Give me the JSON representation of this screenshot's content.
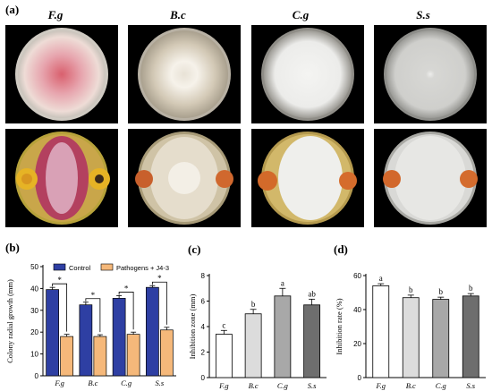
{
  "panel_a": {
    "letter": "(a)",
    "organisms": [
      "F.g",
      "B.c",
      "C.g",
      "S.s"
    ]
  },
  "chart_data": [
    {
      "panel": "(b)",
      "type": "bar",
      "ylabel": "Colony radial growth (mm)",
      "categories": [
        "F.g",
        "B.c",
        "C.g",
        "S.s"
      ],
      "ylim": [
        0,
        50
      ],
      "yticks": [
        0,
        10,
        20,
        30,
        40,
        50
      ],
      "series": [
        {
          "name": "Control",
          "color": "#2e3fa3",
          "values": [
            39.5,
            32.5,
            35.5,
            40.5
          ],
          "errors": [
            1.0,
            1.2,
            1.2,
            0.8
          ]
        },
        {
          "name": "Pathogens + J4-3",
          "color": "#f5b87a",
          "values": [
            18.0,
            18.0,
            19.0,
            21.0
          ],
          "errors": [
            1.0,
            0.8,
            1.0,
            1.2
          ]
        }
      ],
      "significance": [
        "*",
        "*",
        "*",
        "*"
      ]
    },
    {
      "panel": "(c)",
      "type": "bar",
      "ylabel": "Inhibition zone (mm)",
      "categories": [
        "F.g",
        "B.c",
        "C.g",
        "S.s"
      ],
      "ylim": [
        0,
        8
      ],
      "yticks": [
        0,
        2,
        4,
        6,
        8
      ],
      "values": [
        3.4,
        5.0,
        6.4,
        5.7
      ],
      "errors": [
        0.3,
        0.35,
        0.6,
        0.45
      ],
      "colors": [
        "#ffffff",
        "#dcdcdc",
        "#a8a8a8",
        "#6e6e6e"
      ],
      "letters": [
        "c",
        "b",
        "a",
        "ab"
      ]
    },
    {
      "panel": "(d)",
      "type": "bar",
      "ylabel": "Inhibition rate (%)",
      "categories": [
        "F.g",
        "B.c",
        "C.g",
        "S.s"
      ],
      "ylim": [
        0,
        60
      ],
      "yticks": [
        0,
        20,
        40,
        60
      ],
      "values": [
        54,
        47,
        46,
        48
      ],
      "errors": [
        1.2,
        1.5,
        1.3,
        1.4
      ],
      "colors": [
        "#ffffff",
        "#dcdcdc",
        "#a8a8a8",
        "#6e6e6e"
      ],
      "letters": [
        "a",
        "b",
        "b",
        "b"
      ]
    }
  ]
}
